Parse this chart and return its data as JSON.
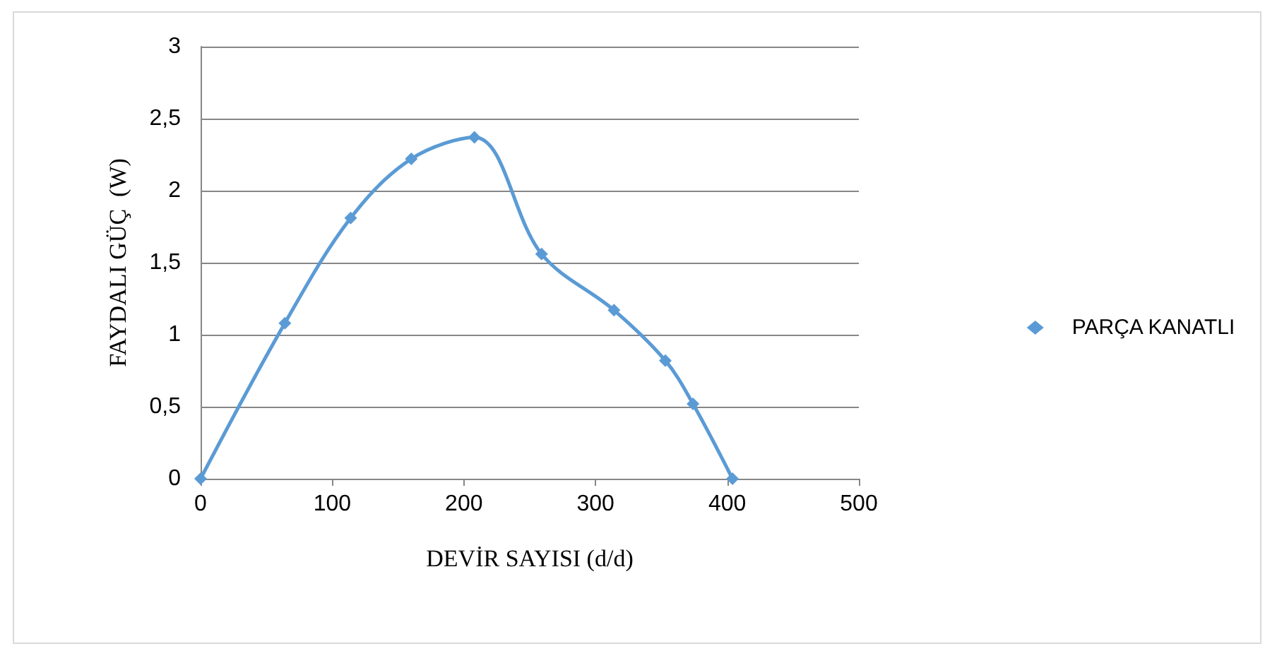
{
  "chart_data": {
    "type": "line",
    "xlabel": "DEVİR SAYISI (d/d)",
    "ylabel": "FAYDALI GÜÇ  (W)",
    "x": [
      0,
      64,
      114,
      160,
      208,
      259,
      314,
      353,
      374,
      404
    ],
    "series": [
      {
        "name": "PARÇA KANATLI",
        "color": "#5b9bd5",
        "values": [
          0,
          1.08,
          1.81,
          2.22,
          2.37,
          1.56,
          1.17,
          0.82,
          0.52,
          0
        ]
      }
    ],
    "xlim": [
      0,
      500
    ],
    "xticks": [
      0,
      100,
      200,
      300,
      400,
      500
    ],
    "ylim": [
      0,
      3
    ],
    "yticks": [
      0,
      {
        "value": 0.5,
        "label": "0,5"
      },
      1,
      {
        "value": 1.5,
        "label": "1,5"
      },
      2,
      {
        "value": 2.5,
        "label": "2,5"
      },
      3
    ],
    "grid": "y",
    "legend": "right",
    "marker": "diamond",
    "line_style": "solid"
  }
}
